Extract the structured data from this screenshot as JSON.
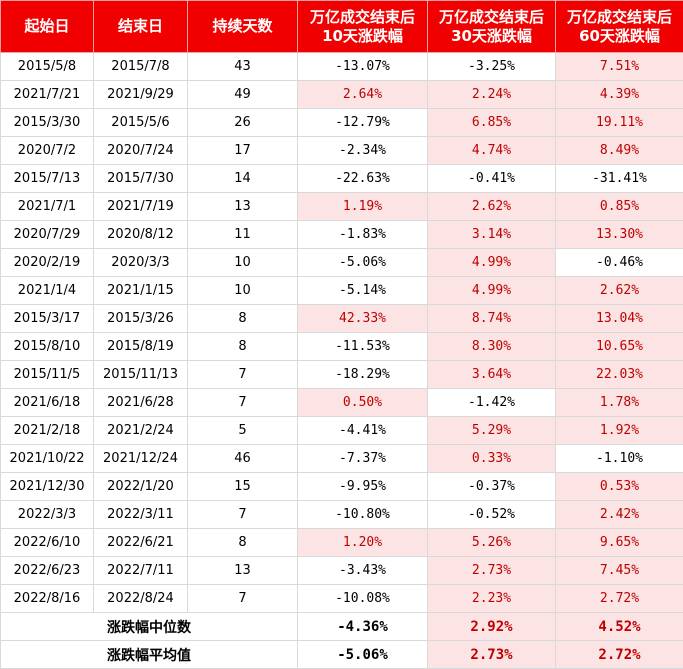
{
  "table": {
    "header": [
      [
        "起始日"
      ],
      [
        "结束日"
      ],
      [
        "持续天数"
      ],
      [
        "万亿成交结束后",
        "10天涨跌幅"
      ],
      [
        "万亿成交结束后",
        "30天涨跌幅"
      ],
      [
        "万亿成交结束后",
        "60天涨跌幅"
      ]
    ],
    "rows": [
      [
        "2015/5/8",
        "2015/7/8",
        "43",
        "-13.07%",
        "-3.25%",
        "7.51%"
      ],
      [
        "2021/7/21",
        "2021/9/29",
        "49",
        "2.64%",
        "2.24%",
        "4.39%"
      ],
      [
        "2015/3/30",
        "2015/5/6",
        "26",
        "-12.79%",
        "6.85%",
        "19.11%"
      ],
      [
        "2020/7/2",
        "2020/7/24",
        "17",
        "-2.34%",
        "4.74%",
        "8.49%"
      ],
      [
        "2015/7/13",
        "2015/7/30",
        "14",
        "-22.63%",
        "-0.41%",
        "-31.41%"
      ],
      [
        "2021/7/1",
        "2021/7/19",
        "13",
        "1.19%",
        "2.62%",
        "0.85%"
      ],
      [
        "2020/7/29",
        "2020/8/12",
        "11",
        "-1.83%",
        "3.14%",
        "13.30%"
      ],
      [
        "2020/2/19",
        "2020/3/3",
        "10",
        "-5.06%",
        "4.99%",
        "-0.46%"
      ],
      [
        "2021/1/4",
        "2021/1/15",
        "10",
        "-5.14%",
        "4.99%",
        "2.62%"
      ],
      [
        "2015/3/17",
        "2015/3/26",
        "8",
        "42.33%",
        "8.74%",
        "13.04%"
      ],
      [
        "2015/8/10",
        "2015/8/19",
        "8",
        "-11.53%",
        "8.30%",
        "10.65%"
      ],
      [
        "2015/11/5",
        "2015/11/13",
        "7",
        "-18.29%",
        "3.64%",
        "22.03%"
      ],
      [
        "2021/6/18",
        "2021/6/28",
        "7",
        "0.50%",
        "-1.42%",
        "1.78%"
      ],
      [
        "2021/2/18",
        "2021/2/24",
        "5",
        "-4.41%",
        "5.29%",
        "1.92%"
      ],
      [
        "2021/10/22",
        "2021/12/24",
        "46",
        "-7.37%",
        "0.33%",
        "-1.10%"
      ],
      [
        "2021/12/30",
        "2022/1/20",
        "15",
        "-9.95%",
        "-0.37%",
        "0.53%"
      ],
      [
        "2022/3/3",
        "2022/3/11",
        "7",
        "-10.80%",
        "-0.52%",
        "2.42%"
      ],
      [
        "2022/6/10",
        "2022/6/21",
        "8",
        "1.20%",
        "5.26%",
        "9.65%"
      ],
      [
        "2022/6/23",
        "2022/7/11",
        "13",
        "-3.43%",
        "2.73%",
        "7.45%"
      ],
      [
        "2022/8/16",
        "2022/8/24",
        "7",
        "-10.08%",
        "2.23%",
        "2.72%"
      ]
    ],
    "footer": [
      {
        "label": "涨跌幅中位数",
        "values": [
          "-4.36%",
          "2.92%",
          "4.52%"
        ]
      },
      {
        "label": "涨跌幅平均值",
        "values": [
          "-5.06%",
          "2.73%",
          "2.72%"
        ]
      }
    ]
  }
}
